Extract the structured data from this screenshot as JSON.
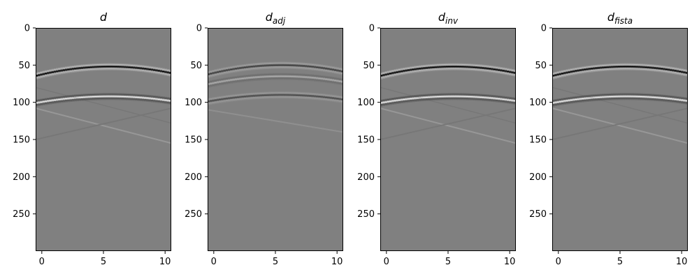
{
  "chart_data": [
    {
      "type": "heatmap",
      "title": "d",
      "title_base": "d",
      "title_sub": "",
      "x_ticks": [
        0,
        5,
        10
      ],
      "y_ticks": [
        0,
        50,
        100,
        150,
        200,
        250
      ],
      "xlim": [
        -0.5,
        10.5
      ],
      "ylim": [
        300,
        0
      ],
      "grid": false,
      "colormap": "gray",
      "events": [
        {
          "t0": 52,
          "curvature": 0.35,
          "amplitude": -1.0
        },
        {
          "t0": 92,
          "curvature": 0.25,
          "amplitude": 0.85
        }
      ]
    },
    {
      "type": "heatmap",
      "title": "d_adj",
      "title_base": "d",
      "title_sub": "adj",
      "x_ticks": [
        0,
        5,
        10
      ],
      "y_ticks": [
        0,
        50,
        100,
        150,
        200,
        250
      ],
      "xlim": [
        -0.5,
        10.5
      ],
      "ylim": [
        300,
        0
      ],
      "grid": false,
      "colormap": "gray",
      "events": [
        {
          "t0": 50,
          "curvature": 0.35,
          "amplitude": -0.55
        },
        {
          "t0": 65,
          "curvature": 0.3,
          "amplitude": 0.35
        },
        {
          "t0": 90,
          "curvature": 0.25,
          "amplitude": -0.45
        }
      ]
    },
    {
      "type": "heatmap",
      "title": "d_inv",
      "title_base": "d",
      "title_sub": "inv",
      "x_ticks": [
        0,
        5,
        10
      ],
      "y_ticks": [
        0,
        50,
        100,
        150,
        200,
        250
      ],
      "xlim": [
        -0.5,
        10.5
      ],
      "ylim": [
        300,
        0
      ],
      "grid": false,
      "colormap": "gray",
      "events": [
        {
          "t0": 52,
          "curvature": 0.35,
          "amplitude": -1.0
        },
        {
          "t0": 92,
          "curvature": 0.25,
          "amplitude": 0.85
        }
      ]
    },
    {
      "type": "heatmap",
      "title": "d_fista",
      "title_base": "d",
      "title_sub": "fista",
      "x_ticks": [
        0,
        5,
        10
      ],
      "y_ticks": [
        0,
        50,
        100,
        150,
        200,
        250
      ],
      "xlim": [
        -0.5,
        10.5
      ],
      "ylim": [
        300,
        0
      ],
      "grid": false,
      "colormap": "gray",
      "events": [
        {
          "t0": 52,
          "curvature": 0.35,
          "amplitude": -1.0
        },
        {
          "t0": 92,
          "curvature": 0.25,
          "amplitude": 0.85
        }
      ]
    }
  ]
}
